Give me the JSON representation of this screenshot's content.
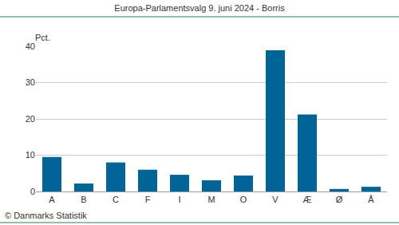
{
  "chart_data": {
    "type": "bar",
    "title": "Europa-Parlamentsvalg 9. juni 2024 - Borris",
    "ylabel": "Pct.",
    "source": "© Danmarks Statistik",
    "categories": [
      "A",
      "B",
      "C",
      "F",
      "I",
      "M",
      "O",
      "V",
      "Æ",
      "Ø",
      "Å"
    ],
    "values": [
      9.5,
      2.2,
      8.0,
      6.0,
      4.6,
      3.1,
      4.4,
      38.9,
      21.2,
      0.7,
      1.3
    ],
    "color": "#006496",
    "ylim": [
      0,
      40
    ],
    "yticks": [
      0,
      10,
      20,
      30,
      40
    ],
    "grid": true
  }
}
